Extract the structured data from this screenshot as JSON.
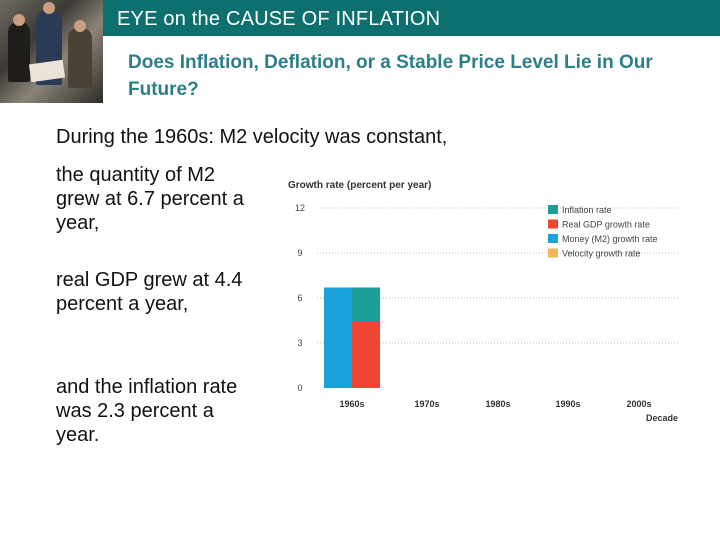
{
  "header": {
    "title": "EYE on the CAUSE OF INFLATION"
  },
  "subtitle": "Does Inflation, Deflation, or a Stable Price Level Lie in Our Future?",
  "body": {
    "lead": "During the 1960s: M2 velocity was constant,",
    "points": [
      "the quantity of M2 grew at 6.7 percent a year,",
      "real GDP grew at 4.4 percent a year,",
      "and the inflation rate was 2.3 percent a year."
    ]
  },
  "chart_data": {
    "type": "bar",
    "title": "Growth rate (percent per year)",
    "xlabel": "Decade",
    "ylabel": "Growth rate (percent per year)",
    "categories": [
      "1960s",
      "1970s",
      "1980s",
      "1990s",
      "2000s"
    ],
    "yticks": [
      0,
      3,
      6,
      9,
      12
    ],
    "ylim": [
      0,
      12.5
    ],
    "series": [
      {
        "name": "Inflation rate",
        "color": "#1a9e96",
        "values": [
          2.3,
          null,
          null,
          null,
          null
        ]
      },
      {
        "name": "Real GDP growth rate",
        "color": "#ee4630",
        "values": [
          4.4,
          null,
          null,
          null,
          null
        ]
      },
      {
        "name": "Money (M2) growth rate",
        "color": "#1aa2dc",
        "values": [
          6.7,
          null,
          null,
          null,
          null
        ]
      },
      {
        "name": "Velocity growth rate",
        "color": "#f7b55a",
        "values": [
          0,
          null,
          null,
          null,
          null
        ]
      }
    ],
    "legend_position": "top-right"
  }
}
